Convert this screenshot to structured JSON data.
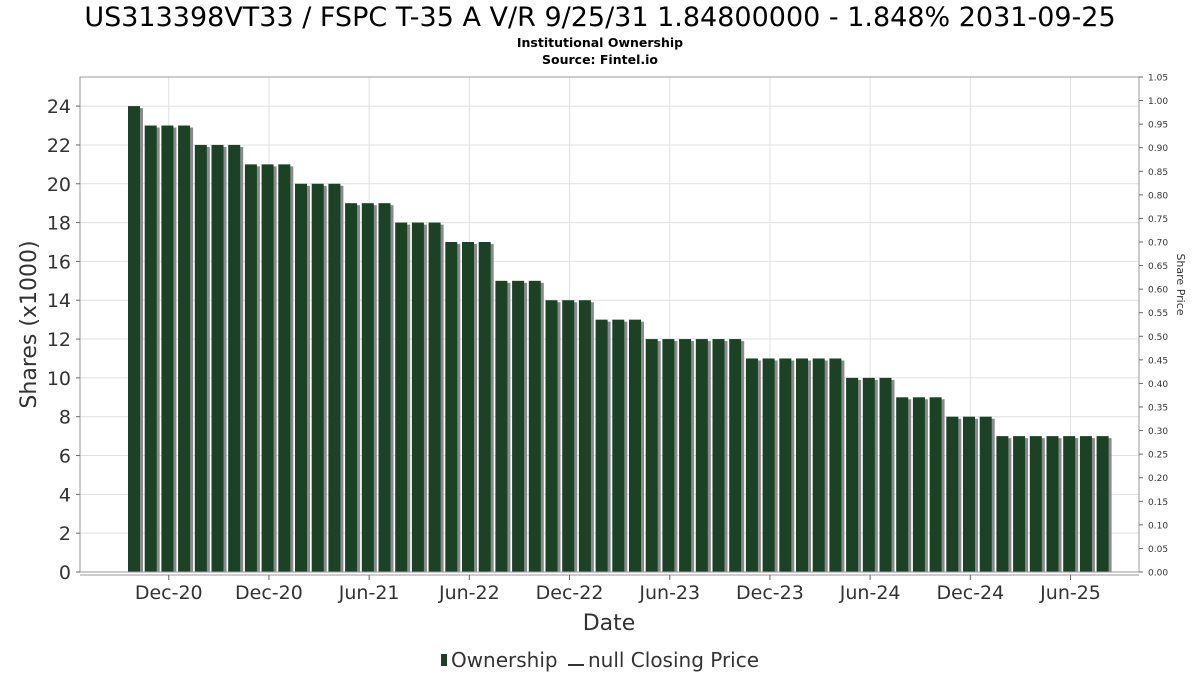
{
  "chart_data": {
    "type": "bar",
    "title": "US313398VT33 / FSPC T-35 A V/R 9/25/31 1.84800000 - 1.848% 2031-09-25",
    "subtitle_lines": [
      "Institutional Ownership",
      "Source: Fintel.io"
    ],
    "xlabel": "Date",
    "ylabel": "Shares (x1000)",
    "y2label": "Share Price",
    "ylim": [
      0,
      25.5
    ],
    "y2lim": [
      0,
      1.05
    ],
    "yticks": [
      0,
      2,
      4,
      6,
      8,
      10,
      12,
      14,
      16,
      18,
      20,
      22,
      24
    ],
    "y2ticks": [
      "0.00",
      "0.05",
      "0.10",
      "0.15",
      "0.20",
      "0.25",
      "0.30",
      "0.35",
      "0.40",
      "0.45",
      "0.50",
      "0.55",
      "0.60",
      "0.65",
      "0.70",
      "0.75",
      "0.80",
      "0.85",
      "0.90",
      "0.95",
      "1.00",
      "1.05"
    ],
    "xticks": [
      {
        "label": "Dec-20",
        "index": 2
      },
      {
        "label": "Dec-20",
        "index": 8
      },
      {
        "label": "Jun-21",
        "index": 14
      },
      {
        "label": "Jun-22",
        "index": 20
      },
      {
        "label": "Dec-22",
        "index": 26
      },
      {
        "label": "Jun-23",
        "index": 32
      },
      {
        "label": "Dec-23",
        "index": 38
      },
      {
        "label": "Jun-24",
        "index": 44
      },
      {
        "label": "Dec-24",
        "index": 50
      },
      {
        "label": "Jun-25",
        "index": 56
      }
    ],
    "grid": true,
    "legend_position": "bottom-center",
    "series": [
      {
        "name": "Ownership",
        "color": "#1b4224",
        "values": [
          24,
          23,
          23,
          23,
          22,
          22,
          22,
          21,
          21,
          21,
          20,
          20,
          20,
          19,
          19,
          19,
          18,
          18,
          18,
          17,
          17,
          17,
          15,
          15,
          15,
          14,
          14,
          14,
          13,
          13,
          13,
          12,
          12,
          12,
          12,
          12,
          12,
          11,
          11,
          11,
          11,
          11,
          11,
          10,
          10,
          10,
          9,
          9,
          9,
          8,
          8,
          8,
          7,
          7,
          7,
          7,
          7,
          7,
          7
        ]
      }
    ],
    "legend": [
      "Ownership",
      "null Closing Price"
    ]
  }
}
